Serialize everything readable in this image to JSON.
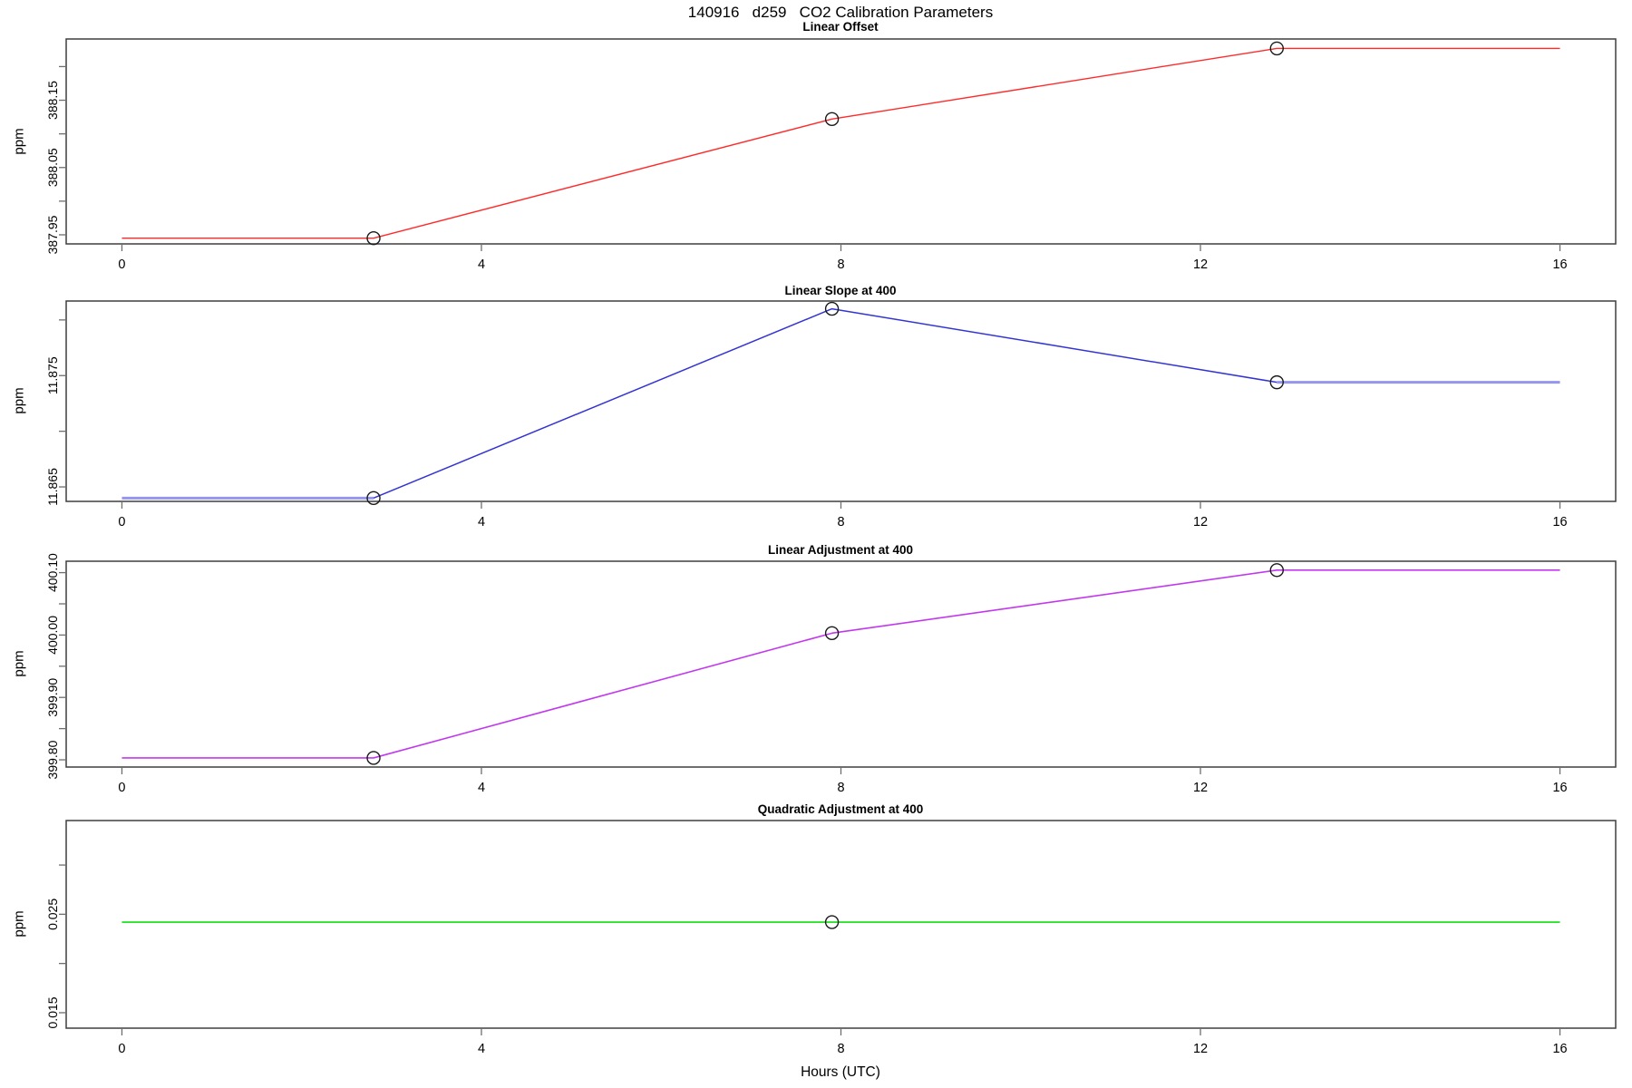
{
  "chart_data": {
    "type": "line",
    "title": "140916   d259   CO2 Calibration Parameters",
    "xlabel": "Hours (UTC)",
    "xlim": [
      -0.62,
      16.62
    ],
    "x_ticks": [
      {
        "v": 0,
        "label": "0"
      },
      {
        "v": 4,
        "label": "4"
      },
      {
        "v": 8,
        "label": "8"
      },
      {
        "v": 12,
        "label": "12"
      },
      {
        "v": 16,
        "label": "16"
      }
    ],
    "calibration_times_hours": [
      2.8,
      7.9,
      12.85
    ],
    "panels": [
      {
        "title": "Linear Offset",
        "ylabel": "ppm",
        "color": "#ff2a2a",
        "ylim": [
          387.9365,
          388.241
        ],
        "y_ticks": [
          {
            "v": 387.95,
            "label": "387.95"
          },
          {
            "v": 388.0,
            "label": ""
          },
          {
            "v": 388.05,
            "label": "388.05"
          },
          {
            "v": 388.1,
            "label": ""
          },
          {
            "v": 388.15,
            "label": "388.15"
          },
          {
            "v": 388.2,
            "label": ""
          }
        ],
        "segments": [
          {
            "color": "#ff2a2a",
            "width": 1.4,
            "pts": [
              [
                0,
                387.945
              ],
              [
                2.8,
                387.945
              ],
              [
                7.9,
                388.122
              ],
              [
                12.85,
                388.227
              ],
              [
                16,
                388.227
              ]
            ]
          }
        ],
        "points": [
          [
            2.8,
            387.945
          ],
          [
            7.9,
            388.122
          ],
          [
            12.85,
            388.227
          ]
        ]
      },
      {
        "title": "Linear Slope at 400",
        "ylabel": "ppm",
        "color": "#3434d3",
        "ylim": [
          11.8637,
          11.8817
        ],
        "y_ticks": [
          {
            "v": 11.865,
            "label": "11.865"
          },
          {
            "v": 11.87,
            "label": ""
          },
          {
            "v": 11.875,
            "label": "11.875"
          },
          {
            "v": 11.88,
            "label": ""
          }
        ],
        "segments": [
          {
            "color": "#9595ef",
            "width": 3,
            "pts": [
              [
                0,
                11.864
              ],
              [
                2.8,
                11.864
              ]
            ]
          },
          {
            "color": "#3434d3",
            "width": 1.5,
            "pts": [
              [
                2.8,
                11.864
              ],
              [
                7.9,
                11.881
              ],
              [
                12.85,
                11.8744
              ]
            ]
          },
          {
            "color": "#9595ef",
            "width": 3,
            "pts": [
              [
                12.85,
                11.8744
              ],
              [
                16,
                11.8744
              ]
            ]
          }
        ],
        "points": [
          [
            2.8,
            11.864
          ],
          [
            7.9,
            11.881
          ],
          [
            12.85,
            11.8744
          ]
        ]
      },
      {
        "title": "Linear Adjustment at 400",
        "ylabel": "ppm",
        "color": "#c238ee",
        "ylim": [
          399.7884,
          400.1183
        ],
        "y_ticks": [
          {
            "v": 399.8,
            "label": "399.80"
          },
          {
            "v": 399.85,
            "label": ""
          },
          {
            "v": 399.9,
            "label": "399.90"
          },
          {
            "v": 399.95,
            "label": ""
          },
          {
            "v": 400.0,
            "label": "400.00"
          },
          {
            "v": 400.05,
            "label": ""
          },
          {
            "v": 400.1,
            "label": "400.10"
          }
        ],
        "segments": [
          {
            "color": "#c238ee",
            "width": 1.6,
            "pts": [
              [
                0,
                399.803
              ],
              [
                2.8,
                399.803
              ],
              [
                7.9,
                400.003
              ],
              [
                12.85,
                400.104
              ],
              [
                16,
                400.104
              ]
            ]
          }
        ],
        "points": [
          [
            2.8,
            399.803
          ],
          [
            7.9,
            400.003
          ],
          [
            12.85,
            400.104
          ]
        ]
      },
      {
        "title": "Quadratic Adjustment at 400",
        "ylabel": "ppm",
        "color": "#0ddf0d",
        "ylim": [
          0.01343,
          0.03452
        ],
        "y_ticks": [
          {
            "v": 0.015,
            "label": "0.015"
          },
          {
            "v": 0.02,
            "label": ""
          },
          {
            "v": 0.025,
            "label": "0.025"
          },
          {
            "v": 0.03,
            "label": ""
          }
        ],
        "segments": [
          {
            "color": "#0ddf0d",
            "width": 1.6,
            "pts": [
              [
                0,
                0.0242
              ],
              [
                16,
                0.0242
              ]
            ]
          }
        ],
        "points": [
          [
            7.9,
            0.0242
          ]
        ]
      }
    ]
  }
}
